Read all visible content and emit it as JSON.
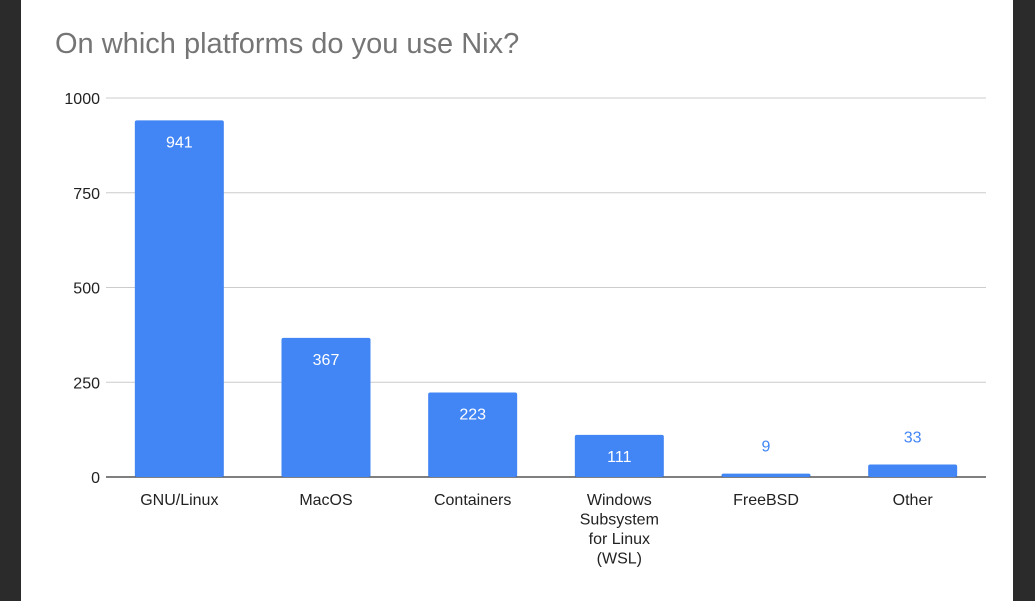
{
  "chart_data": {
    "type": "bar",
    "title": "On which platforms do you use Nix?",
    "xlabel": "",
    "ylabel": "",
    "categories": [
      "GNU/Linux",
      "MacOS",
      "Containers",
      "Windows Subsystem for Linux (WSL)",
      "FreeBSD",
      "Other"
    ],
    "category_label_lines": [
      [
        "GNU/Linux"
      ],
      [
        "MacOS"
      ],
      [
        "Containers"
      ],
      [
        "Windows",
        "Subsystem",
        "for Linux",
        "(WSL)"
      ],
      [
        "FreeBSD"
      ],
      [
        "Other"
      ]
    ],
    "values": [
      941,
      367,
      223,
      111,
      9,
      33
    ],
    "ylim": [
      0,
      1000
    ],
    "yticks": [
      0,
      250,
      500,
      750,
      1000
    ],
    "grid": true,
    "legend": "none",
    "bar_color": "#4285f4",
    "label_inside_color": "#ffffff",
    "label_outside_color": "#4285f4",
    "gridline_color": "#cccccc",
    "axis_color": "#333333",
    "text_color": "#222222",
    "title_color": "#757575",
    "background": "#ffffff",
    "frame_color": "#2b2b2b"
  }
}
